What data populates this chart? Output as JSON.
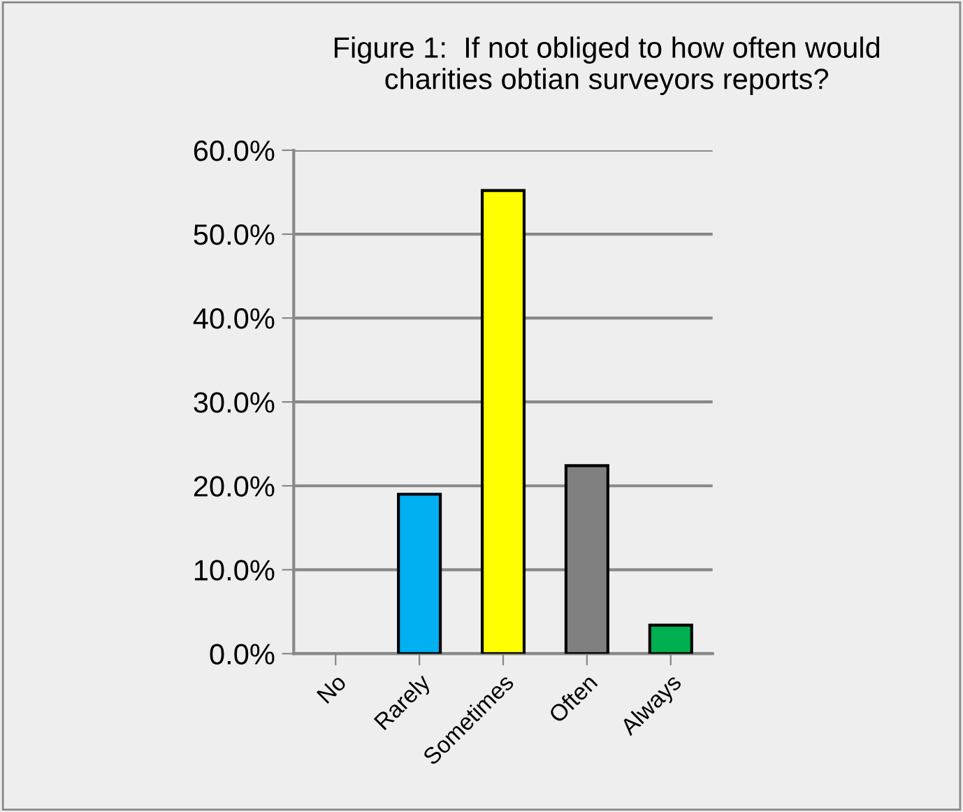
{
  "chart_data": {
    "type": "bar",
    "title": "Figure 1:  If not obliged to how often would\ncharities obtian surveyors reports?",
    "categories": [
      "No",
      "Rarely",
      "Sometimes",
      "Often",
      "Always"
    ],
    "values": [
      0,
      19.0,
      55.2,
      22.4,
      3.4
    ],
    "colors": [
      "#00b0f0",
      "#00b0f0",
      "#ffff00",
      "#808080",
      "#00b050"
    ],
    "ylim": [
      0,
      60
    ],
    "yticks": [
      {
        "value": 0,
        "label": "0.0%"
      },
      {
        "value": 10,
        "label": "10.0%"
      },
      {
        "value": 20,
        "label": "20.0%"
      },
      {
        "value": 30,
        "label": "30.0%"
      },
      {
        "value": 40,
        "label": "40.0%"
      },
      {
        "value": 50,
        "label": "50.0%"
      },
      {
        "value": 60,
        "label": "60.0%"
      }
    ],
    "grid": "y"
  }
}
